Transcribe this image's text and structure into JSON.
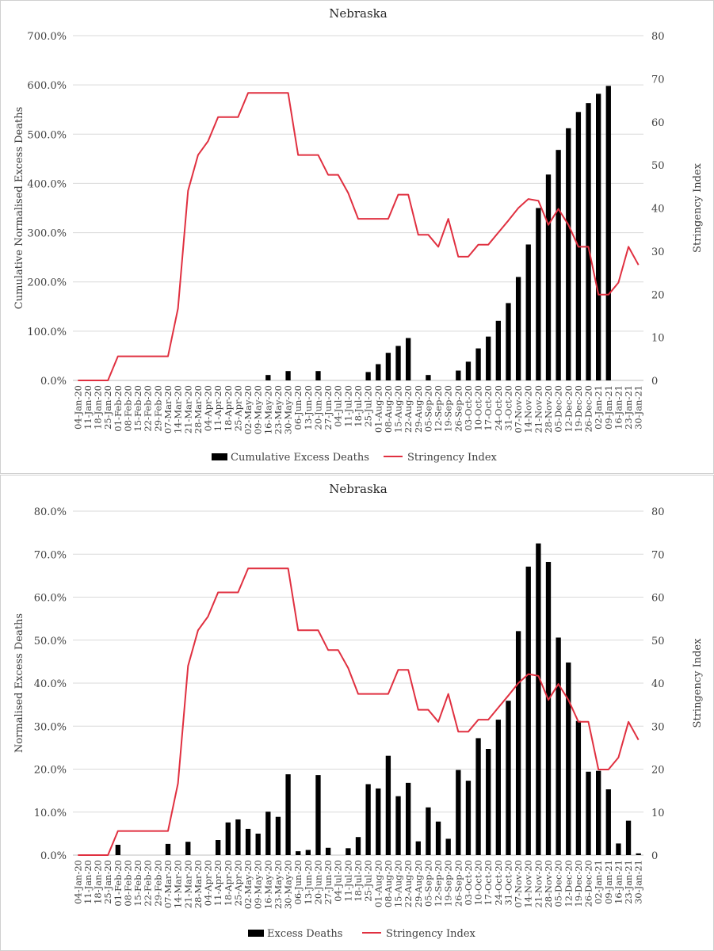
{
  "dates": [
    "04-Jan-20",
    "11-Jan-20",
    "18-Jan-20",
    "25-Jan-20",
    "01-Feb-20",
    "08-Feb-20",
    "15-Feb-20",
    "22-Feb-20",
    "29-Feb-20",
    "07-Mar-20",
    "14-Mar-20",
    "21-Mar-20",
    "28-Mar-20",
    "04-Apr-20",
    "11-Apr-20",
    "18-Apr-20",
    "25-Apr-20",
    "02-May-20",
    "09-May-20",
    "16-May-20",
    "23-May-20",
    "30-May-20",
    "06-Jun-20",
    "13-Jun-20",
    "20-Jun-20",
    "27-Jun-20",
    "04-Jul-20",
    "11-Jul-20",
    "18-Jul-20",
    "25-Jul-20",
    "01-Aug-20",
    "08-Aug-20",
    "15-Aug-20",
    "22-Aug-20",
    "29-Aug-20",
    "05-Sep-20",
    "12-Sep-20",
    "19-Sep-20",
    "26-Sep-20",
    "03-Oct-20",
    "10-Oct-20",
    "17-Oct-20",
    "24-Oct-20",
    "31-Oct-20",
    "07-Nov-20",
    "14-Nov-20",
    "21-Nov-20",
    "28-Nov-20",
    "05-Dec-20",
    "12-Dec-20",
    "19-Dec-20",
    "26-Dec-20",
    "02-Jan-21",
    "09-Jan-21",
    "16-Jan-21",
    "23-Jan-21",
    "30-Jan-21"
  ],
  "colors": {
    "bars": "#000000",
    "line": "#e03040"
  },
  "chart_data": [
    {
      "type": "bar",
      "title": "Nebraska",
      "ylabel": "Cumulative Normalised Excess Deaths",
      "y2label": "Stringency Index",
      "ylim": [
        0,
        700
      ],
      "y_ticks": [
        "0.0%",
        "100.0%",
        "200.0%",
        "300.0%",
        "400.0%",
        "500.0%",
        "600.0%",
        "700.0%"
      ],
      "y2lim": [
        0,
        80
      ],
      "y2_ticks": [
        "0",
        "10",
        "20",
        "30",
        "40",
        "50",
        "60",
        "70",
        "80"
      ],
      "grid": true,
      "legend_position": "bottom",
      "series": [
        {
          "name": "Cumulative Excess Deaths",
          "type": "bar",
          "values": [
            0,
            0,
            0,
            0,
            0,
            0,
            0,
            0,
            0,
            0,
            0,
            0,
            0,
            0,
            0,
            0,
            0,
            0,
            0,
            11,
            0,
            19,
            0,
            0,
            19,
            0,
            0,
            0,
            0,
            17,
            33,
            56,
            70,
            86,
            0,
            11,
            0,
            0,
            20,
            38,
            65,
            89,
            121,
            157,
            210,
            276,
            350,
            418,
            468,
            512,
            545,
            563,
            582,
            598,
            null,
            null,
            null
          ]
        },
        {
          "name": "Stringency Index",
          "type": "line",
          "axis": "right",
          "values": [
            0,
            0,
            0,
            0,
            5.6,
            5.6,
            5.6,
            5.6,
            5.6,
            5.6,
            16.7,
            44,
            52.3,
            55.5,
            61.1,
            61.1,
            61.1,
            66.7,
            66.7,
            66.7,
            66.7,
            66.7,
            52.3,
            52.3,
            52.3,
            47.7,
            47.7,
            43.5,
            37.5,
            37.5,
            37.5,
            37.5,
            43.1,
            43.1,
            33.8,
            33.8,
            31,
            37.5,
            28.7,
            28.7,
            31.5,
            31.5,
            34.3,
            37.1,
            40,
            42.1,
            41.7,
            36.1,
            39.8,
            36.1,
            31,
            31,
            19.9,
            19.9,
            22.7,
            31,
            26.8
          ]
        }
      ]
    },
    {
      "type": "bar",
      "title": "Nebraska",
      "ylabel": "Normalised Excess Deaths",
      "y2label": "Stringency Index",
      "ylim": [
        0,
        80
      ],
      "y_ticks": [
        "0.0%",
        "10.0%",
        "20.0%",
        "30.0%",
        "40.0%",
        "50.0%",
        "60.0%",
        "70.0%",
        "80.0%"
      ],
      "y2lim": [
        0,
        80
      ],
      "y2_ticks": [
        "0",
        "10",
        "20",
        "30",
        "40",
        "50",
        "60",
        "70",
        "80"
      ],
      "grid": true,
      "legend_position": "bottom",
      "series": [
        {
          "name": "Excess Deaths",
          "type": "bar",
          "values": [
            0,
            0,
            0,
            0,
            2.4,
            0,
            0,
            0,
            0,
            2.6,
            0,
            3.1,
            0,
            0,
            3.5,
            7.6,
            8.3,
            6.1,
            5.0,
            10.1,
            8.9,
            18.8,
            0.9,
            1.2,
            18.6,
            1.7,
            0,
            1.6,
            4.2,
            16.5,
            15.5,
            23.1,
            13.7,
            16.8,
            3.2,
            11.1,
            7.8,
            3.8,
            19.8,
            17.3,
            27.2,
            24.7,
            31.5,
            35.9,
            52.1,
            67.1,
            72.5,
            68.2,
            50.6,
            44.8,
            31.2,
            19.4,
            19.6,
            15.3,
            2.7,
            8.0,
            0.4
          ]
        },
        {
          "name": "Stringency Index",
          "type": "line",
          "axis": "right",
          "values": [
            0,
            0,
            0,
            0,
            5.6,
            5.6,
            5.6,
            5.6,
            5.6,
            5.6,
            16.7,
            44,
            52.3,
            55.5,
            61.1,
            61.1,
            61.1,
            66.7,
            66.7,
            66.7,
            66.7,
            66.7,
            52.3,
            52.3,
            52.3,
            47.7,
            47.7,
            43.5,
            37.5,
            37.5,
            37.5,
            37.5,
            43.1,
            43.1,
            33.8,
            33.8,
            31,
            37.5,
            28.7,
            28.7,
            31.5,
            31.5,
            34.3,
            37.1,
            40,
            42.1,
            41.7,
            36.1,
            39.8,
            36.1,
            31,
            31,
            19.9,
            19.9,
            22.7,
            31,
            26.8
          ]
        }
      ]
    }
  ]
}
